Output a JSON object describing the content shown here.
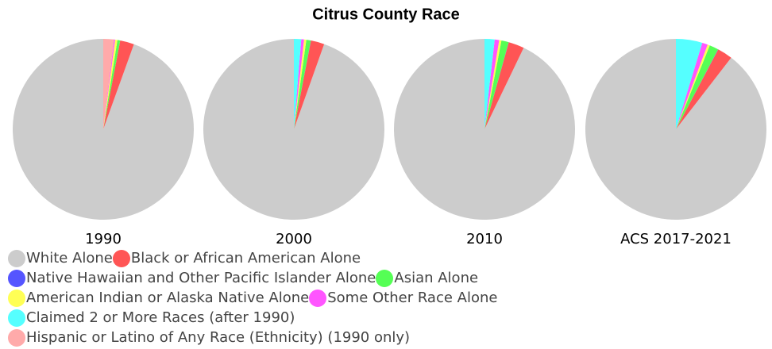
{
  "title": "Citrus County Race",
  "legend": {
    "categories": [
      "White Alone",
      "Black or African American Alone",
      "Native Hawaiian and Other Pacific Islander Alone",
      "Asian Alone",
      "American Indian or Alaska Native Alone",
      "Some Other Race Alone",
      "Claimed 2 or More Races (after 1990)",
      "Hispanic or Latino of Any Race (Ethnicity) (1990 only)"
    ],
    "colors": [
      "#cccccc",
      "#ff5555",
      "#5555ff",
      "#55ff55",
      "#ffff55",
      "#ff55ff",
      "#55ffff",
      "#ffaaaa"
    ]
  },
  "chart_data": [
    {
      "type": "pie",
      "title": "1990",
      "values": [
        94.5,
        2.5,
        0,
        0.5,
        0.4,
        0.2,
        null,
        1.9
      ]
    },
    {
      "type": "pie",
      "title": "2000",
      "values": [
        94.6,
        2.4,
        0.03,
        0.8,
        0.4,
        0.5,
        1.3,
        null
      ]
    },
    {
      "type": "pie",
      "title": "2010",
      "values": [
        92.9,
        2.8,
        0.03,
        1.3,
        0.4,
        0.8,
        1.8,
        null
      ]
    },
    {
      "type": "pie",
      "title": "ACS 2017-2021",
      "values": [
        89.5,
        2.7,
        0.05,
        1.6,
        0.4,
        1.0,
        4.7,
        null
      ]
    }
  ]
}
